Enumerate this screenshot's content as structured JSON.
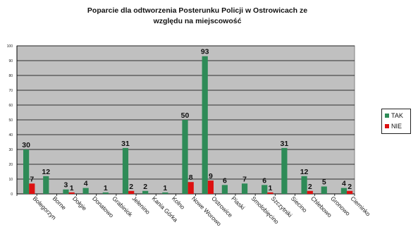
{
  "chart_data": {
    "type": "bar",
    "title_lines": [
      "Poparcie dla odtworzenia Posterunku Policji w Ostrowicach ze",
      "względu na miejscowość"
    ],
    "categories": [
      "Bolegorzyn",
      "Borne",
      "Dołgie",
      "Donatowo",
      "Grabiniok",
      "Jelenino",
      "Kania Górka",
      "Kolno",
      "Nowe Worowo",
      "Ostrowice",
      "Piaski",
      "Smolobięcino",
      "Szczytniki",
      "Siecino",
      "Chlebowo",
      "Gronowo",
      "Cieminko"
    ],
    "series": [
      {
        "name": "TAK",
        "color": "#2e8b57",
        "values": [
          30,
          12,
          3,
          4,
          1,
          31,
          2,
          1,
          50,
          93,
          6,
          7,
          6,
          31,
          12,
          5,
          4
        ]
      },
      {
        "name": "NIE",
        "color": "#dd1111",
        "values": [
          7,
          0,
          1,
          0,
          0,
          2,
          0,
          0,
          8,
          9,
          0,
          0,
          1,
          0,
          2,
          0,
          2
        ]
      }
    ],
    "ylim": [
      0,
      100
    ],
    "yticks": [
      0,
      10,
      20,
      30,
      40,
      50,
      60,
      70,
      80,
      90,
      100
    ],
    "grid": true,
    "legend_position": "right",
    "plot_background": "#c0c0c0"
  }
}
